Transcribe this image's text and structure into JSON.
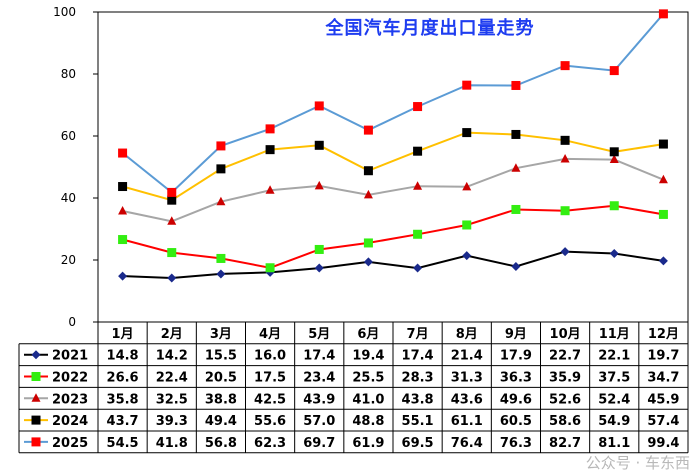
{
  "chart_data": {
    "type": "line",
    "title": "全国汽车月度出口量走势",
    "categories": [
      "1月",
      "2月",
      "3月",
      "4月",
      "5月",
      "6月",
      "7月",
      "8月",
      "9月",
      "10月",
      "11月",
      "12月"
    ],
    "ylim": [
      0,
      100
    ],
    "yticks": [
      0,
      20,
      40,
      60,
      80,
      100
    ],
    "grid": false,
    "legend": "table-below",
    "series": [
      {
        "name": "2021",
        "color": "#000000",
        "marker": "diamond",
        "marker_color": "#1a2a8c",
        "values": [
          14.8,
          14.2,
          15.5,
          16.0,
          17.4,
          19.4,
          17.4,
          21.4,
          17.9,
          22.7,
          22.1,
          19.7
        ]
      },
      {
        "name": "2022",
        "color": "#ff0000",
        "marker": "square",
        "marker_color": "#33ee11",
        "values": [
          26.6,
          22.4,
          20.5,
          17.5,
          23.4,
          25.5,
          28.3,
          31.3,
          36.3,
          35.9,
          37.5,
          34.7
        ]
      },
      {
        "name": "2023",
        "color": "#a6a6a6",
        "marker": "triangle",
        "marker_color": "#cc0000",
        "values": [
          35.8,
          32.5,
          38.8,
          42.5,
          43.9,
          41.0,
          43.8,
          43.6,
          49.6,
          52.6,
          52.4,
          45.9
        ]
      },
      {
        "name": "2024",
        "color": "#ffc000",
        "marker": "square",
        "marker_color": "#000000",
        "values": [
          43.7,
          39.3,
          49.4,
          55.6,
          57.0,
          48.8,
          55.1,
          61.1,
          60.5,
          58.6,
          54.9,
          57.4
        ]
      },
      {
        "name": "2025",
        "color": "#5b9bd5",
        "marker": "square",
        "marker_color": "#ff0000",
        "values": [
          54.5,
          41.8,
          56.8,
          62.3,
          69.7,
          61.9,
          69.5,
          76.4,
          76.3,
          82.7,
          81.1,
          99.4
        ]
      }
    ]
  },
  "watermark": "公众号 · 车东西"
}
